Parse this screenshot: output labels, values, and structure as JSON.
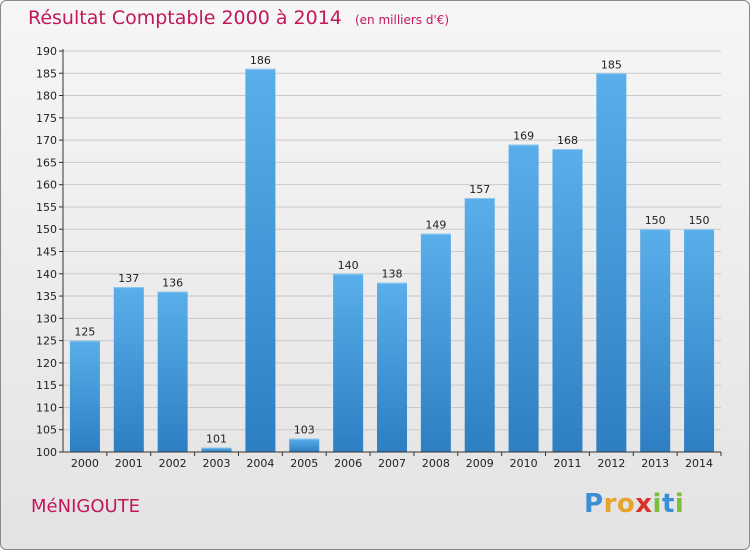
{
  "header": {
    "title": "Résultat Comptable 2000 à 2014",
    "subtitle": "(en milliers d'€)"
  },
  "footer": {
    "commune": "MéNIGOUTE",
    "logo_letters": [
      {
        "ch": "P",
        "color": "#3a8fd6"
      },
      {
        "ch": "r",
        "color": "#e8a32c"
      },
      {
        "ch": "o",
        "color": "#e8a32c"
      },
      {
        "ch": "x",
        "color": "#d9332a"
      },
      {
        "ch": "i",
        "color": "#7cbf3b"
      },
      {
        "ch": "t",
        "color": "#3a8fd6"
      },
      {
        "ch": "i",
        "color": "#7cbf3b"
      }
    ]
  },
  "colors": {
    "title": "#c2185b",
    "bar_light": "#5aaeea",
    "bar_dark": "#2e7fc2",
    "grid": "#c9c9c9",
    "axis": "#333333"
  },
  "chart_data": {
    "type": "bar",
    "categories": [
      "2000",
      "2001",
      "2002",
      "2003",
      "2004",
      "2005",
      "2006",
      "2007",
      "2008",
      "2009",
      "2010",
      "2011",
      "2012",
      "2013",
      "2014"
    ],
    "values": [
      125,
      137,
      136,
      101,
      186,
      103,
      140,
      138,
      149,
      157,
      169,
      168,
      185,
      150,
      150
    ],
    "ylim": [
      100,
      190
    ],
    "yticks": [
      100,
      105,
      110,
      115,
      120,
      125,
      130,
      135,
      140,
      145,
      150,
      155,
      160,
      165,
      170,
      175,
      180,
      185,
      190
    ],
    "grid": true,
    "title": "Résultat Comptable 2000 à 2014",
    "xlabel": "",
    "ylabel": ""
  }
}
